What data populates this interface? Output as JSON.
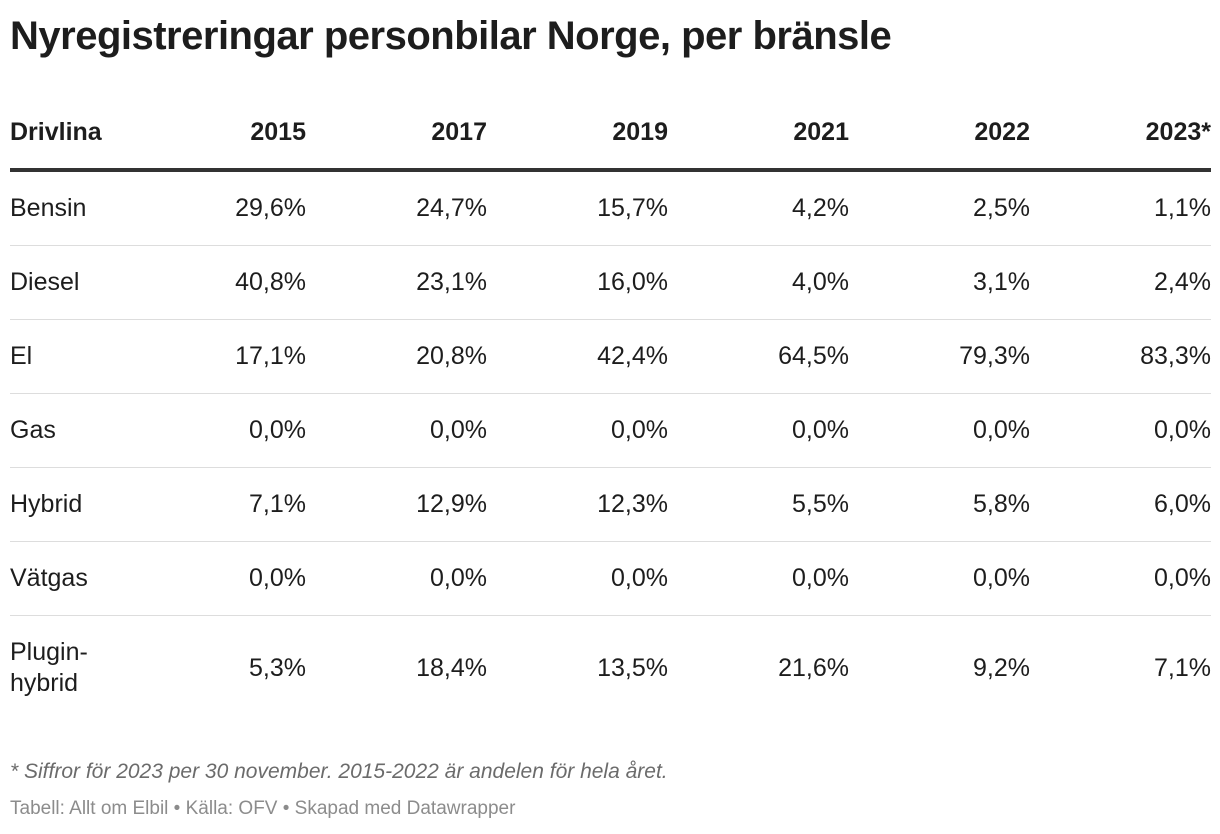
{
  "title": "Nyregistreringar personbilar Norge, per bränsle",
  "chart_data": {
    "type": "table",
    "columns": [
      "Drivlina",
      "2015",
      "2017",
      "2019",
      "2021",
      "2022",
      "2023*"
    ],
    "rows": [
      {
        "label": "Bensin",
        "values": [
          "29,6%",
          "24,7%",
          "15,7%",
          "4,2%",
          "2,5%",
          "1,1%"
        ]
      },
      {
        "label": "Diesel",
        "values": [
          "40,8%",
          "23,1%",
          "16,0%",
          "4,0%",
          "3,1%",
          "2,4%"
        ]
      },
      {
        "label": "El",
        "values": [
          "17,1%",
          "20,8%",
          "42,4%",
          "64,5%",
          "79,3%",
          "83,3%"
        ]
      },
      {
        "label": "Gas",
        "values": [
          "0,0%",
          "0,0%",
          "0,0%",
          "0,0%",
          "0,0%",
          "0,0%"
        ]
      },
      {
        "label": "Hybrid",
        "values": [
          "7,1%",
          "12,9%",
          "12,3%",
          "5,5%",
          "5,8%",
          "6,0%"
        ]
      },
      {
        "label": "Vätgas",
        "values": [
          "0,0%",
          "0,0%",
          "0,0%",
          "0,0%",
          "0,0%",
          "0,0%"
        ]
      },
      {
        "label": "Plugin-hybrid",
        "values": [
          "5,3%",
          "18,4%",
          "13,5%",
          "21,6%",
          "9,2%",
          "7,1%"
        ]
      }
    ]
  },
  "footnote": "* Siffror för 2023 per 30 november. 2015-2022 är andelen för hela året.",
  "credits": "Tabell: Allt om Elbil • Källa: OFV • Skapad med Datawrapper"
}
